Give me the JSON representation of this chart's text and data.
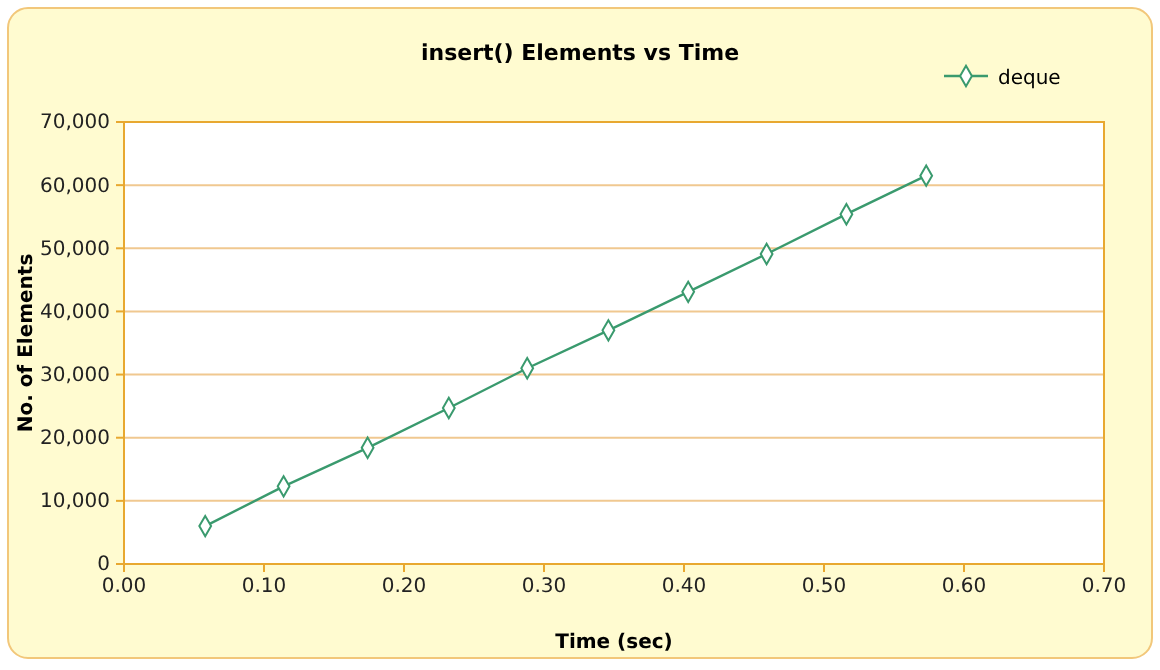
{
  "chart_data": {
    "type": "line",
    "title": "insert() Elements vs Time",
    "xlabel": "Time (sec)",
    "ylabel": "No. of Elements",
    "x": [
      0.058,
      0.114,
      0.174,
      0.232,
      0.288,
      0.346,
      0.403,
      0.459,
      0.516,
      0.573
    ],
    "series": [
      {
        "name": "deque",
        "color": "#3a9a6e",
        "values": [
          6000,
          12300,
          18400,
          24700,
          31000,
          37000,
          43100,
          49100,
          55400,
          61500
        ]
      }
    ],
    "xlim": [
      0,
      0.7
    ],
    "xticks": [
      {
        "value": 0,
        "label": "0.00"
      },
      {
        "value": 0.1,
        "label": "0.10"
      },
      {
        "value": 0.2,
        "label": "0.20"
      },
      {
        "value": 0.3,
        "label": "0.30"
      },
      {
        "value": 0.4,
        "label": "0.40"
      },
      {
        "value": 0.5,
        "label": "0.50"
      },
      {
        "value": 0.6,
        "label": "0.60"
      },
      {
        "value": 0.7,
        "label": "0.70"
      }
    ],
    "ylim": [
      0,
      70000
    ],
    "yticks": [
      {
        "value": 0,
        "label": "0"
      },
      {
        "value": 10000,
        "label": "10,000"
      },
      {
        "value": 20000,
        "label": "20,000"
      },
      {
        "value": 30000,
        "label": "30,000"
      },
      {
        "value": 40000,
        "label": "40,000"
      },
      {
        "value": 50000,
        "label": "50,000"
      },
      {
        "value": 60000,
        "label": "60,000"
      },
      {
        "value": 70000,
        "label": "70,000"
      }
    ],
    "grid": "y",
    "legend": "top right",
    "marker": "diamond",
    "line_style": "solid"
  }
}
